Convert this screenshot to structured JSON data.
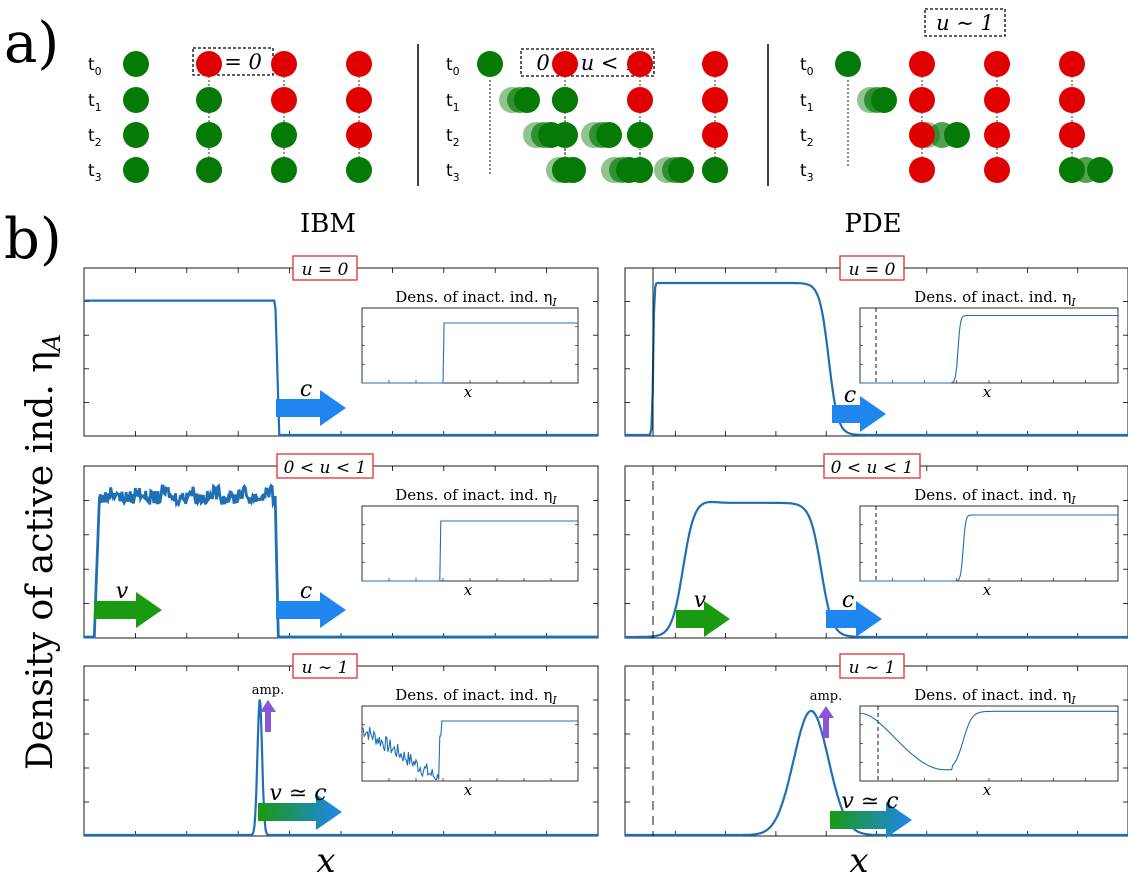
{
  "panel_labels": {
    "a": "a)",
    "b": "b)"
  },
  "part_a": {
    "groups": [
      {
        "header": "u = 0",
        "rows": [
          {
            "time": "t0",
            "dots": [
              "green",
              "red",
              "red",
              "red"
            ]
          },
          {
            "time": "t1",
            "dots": [
              "green",
              "green",
              "red",
              "red"
            ]
          },
          {
            "time": "t2",
            "dots": [
              "green",
              "green",
              "green",
              "red"
            ]
          },
          {
            "time": "t3",
            "dots": [
              "green",
              "green",
              "green",
              "green"
            ]
          }
        ]
      },
      {
        "header": "0 < u < 1",
        "rows": [
          {
            "time": "t0",
            "dots": [
              "green",
              "red",
              "red",
              "red"
            ]
          },
          {
            "time": "t1",
            "dots": [
              "green",
              "green",
              "red",
              "red"
            ]
          },
          {
            "time": "t2",
            "dots": [
              "green",
              "green",
              "green",
              "red"
            ]
          },
          {
            "time": "t3",
            "dots": [
              "green",
              "green",
              "green",
              "green"
            ]
          }
        ]
      },
      {
        "header": "u ∼ 1",
        "rows": [
          {
            "time": "t0",
            "dots": [
              "green",
              "red",
              "red",
              "red"
            ]
          },
          {
            "time": "t1",
            "dots": [
              "green",
              "red",
              "red",
              "red"
            ]
          },
          {
            "time": "t2",
            "dots": [
              "green",
              "red",
              "red",
              "red"
            ]
          },
          {
            "time": "t3",
            "dots": [
              "red",
              "red",
              "green"
            ]
          }
        ]
      }
    ]
  },
  "part_b": {
    "column_titles": [
      "IBM",
      "PDE"
    ],
    "y_label": "Density of active ind. η",
    "y_label_sub": "A",
    "x_label": "x",
    "inset_title": "Dens. of inact. ind. η",
    "inset_title_sub": "I",
    "inset_x_label": "x",
    "row_regimes": [
      "u = 0",
      "0 < u < 1",
      "u ∼ 1"
    ],
    "arrow_labels": {
      "front": "c",
      "velocity": "v",
      "matched": "v ≃ c",
      "amp": "amp."
    }
  },
  "colors": {
    "green_dot": "#067a06",
    "red_dot": "#e00000",
    "curve": "#1f6fb4",
    "arrow_c": "#1f86f0",
    "arrow_v": "#1a9a10",
    "arrow_amp": "#8a55d8",
    "regime_box": "#e03030"
  }
}
